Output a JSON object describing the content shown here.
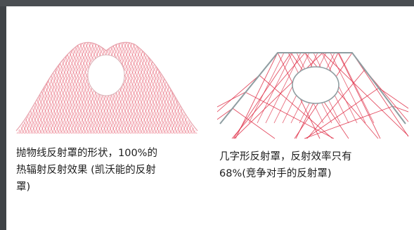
{
  "captions": {
    "left": "抛物线反射罩的形状，100%的\n热辐射反射效果 (凯沃能的反射\n罩)",
    "right": "几字形反射罩，反射效率只有\n68%(竞争对手的反射罩)"
  },
  "colors": {
    "background": "#3f4347",
    "panel": "#ffffff",
    "ray": "#e0324a",
    "reflector_line": "#9aa3a6",
    "text": "#1d1d1d"
  },
  "icons": {
    "left_figure": "parabolic-reflector-ray-diagram",
    "right_figure": "trapezoid-reflector-ray-diagram"
  }
}
